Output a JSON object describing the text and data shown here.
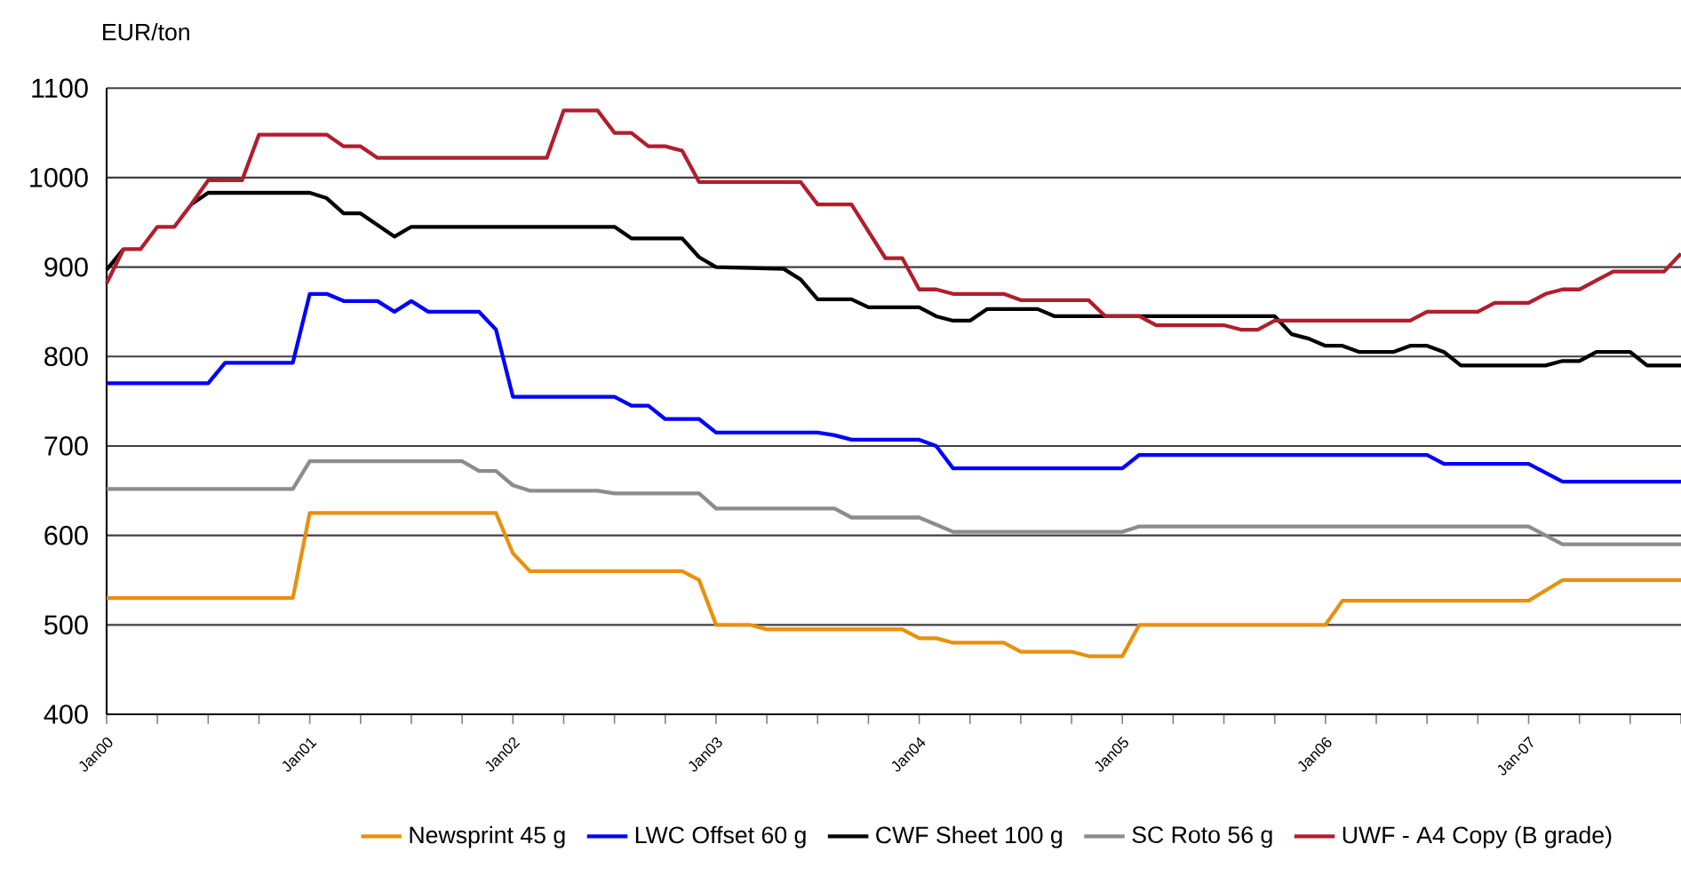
{
  "chart_data": {
    "type": "line",
    "ylabel": "EUR/ton",
    "xlim": [
      "2000-01",
      "2007-10"
    ],
    "ylim": [
      400,
      1100
    ],
    "yticks": [
      400,
      500,
      600,
      700,
      800,
      900,
      1000,
      1100
    ],
    "xticks": [
      {
        "value": "2000-01",
        "label": "Jan00"
      },
      {
        "value": "2000-04",
        "label": null
      },
      {
        "value": "2000-07",
        "label": null
      },
      {
        "value": "2000-10",
        "label": null
      },
      {
        "value": "2001-01",
        "label": "Jan01"
      },
      {
        "value": "2001-04",
        "label": null
      },
      {
        "value": "2001-07",
        "label": null
      },
      {
        "value": "2001-10",
        "label": null
      },
      {
        "value": "2002-01",
        "label": "Jan02"
      },
      {
        "value": "2002-04",
        "label": null
      },
      {
        "value": "2002-07",
        "label": null
      },
      {
        "value": "2002-10",
        "label": null
      },
      {
        "value": "2003-01",
        "label": "Jan03"
      },
      {
        "value": "2003-04",
        "label": null
      },
      {
        "value": "2003-07",
        "label": null
      },
      {
        "value": "2003-10",
        "label": null
      },
      {
        "value": "2004-01",
        "label": "Jan04"
      },
      {
        "value": "2004-04",
        "label": null
      },
      {
        "value": "2004-07",
        "label": null
      },
      {
        "value": "2004-10",
        "label": null
      },
      {
        "value": "2005-01",
        "label": "Jan05"
      },
      {
        "value": "2005-04",
        "label": null
      },
      {
        "value": "2005-07",
        "label": null
      },
      {
        "value": "2005-10",
        "label": null
      },
      {
        "value": "2006-01",
        "label": "Jan06"
      },
      {
        "value": "2006-04",
        "label": null
      },
      {
        "value": "2006-07",
        "label": null
      },
      {
        "value": "2006-10",
        "label": null
      },
      {
        "value": "2007-01",
        "label": "Jan-07"
      },
      {
        "value": "2007-04",
        "label": null
      },
      {
        "value": "2007-07",
        "label": null
      },
      {
        "value": "2007-10",
        "label": null
      }
    ],
    "grid": "y",
    "legend": "bottom",
    "marker": "none",
    "line_style": "solid",
    "series": [
      {
        "name": "Newsprint 45 g",
        "color": "#e8900c",
        "x": [
          "2000-01",
          "2000-12",
          "2001-01",
          "2001-12",
          "2002-01",
          "2002-02",
          "2002-11",
          "2002-12",
          "2003-01",
          "2003-03",
          "2003-04",
          "2003-12",
          "2004-01",
          "2004-02",
          "2004-03",
          "2004-06",
          "2004-07",
          "2004-10",
          "2004-11",
          "2005-01",
          "2005-02",
          "2006-01",
          "2006-02",
          "2007-01",
          "2007-03",
          "2007-10"
        ],
        "values": [
          530,
          530,
          625,
          625,
          580,
          560,
          560,
          550,
          500,
          500,
          495,
          495,
          485,
          485,
          480,
          480,
          470,
          470,
          465,
          465,
          500,
          500,
          527,
          527,
          550,
          550
        ]
      },
      {
        "name": "LWC Offset 60 g",
        "color": "#0000ff",
        "x": [
          "2000-01",
          "2000-07",
          "2000-08",
          "2000-12",
          "2001-01",
          "2001-02",
          "2001-03",
          "2001-05",
          "2001-06",
          "2001-07",
          "2001-08",
          "2001-11",
          "2001-12",
          "2002-01",
          "2002-07",
          "2002-08",
          "2002-09",
          "2002-10",
          "2002-12",
          "2003-01",
          "2003-07",
          "2003-08",
          "2003-09",
          "2004-01",
          "2004-02",
          "2004-03",
          "2005-01",
          "2005-02",
          "2006-07",
          "2006-08",
          "2007-01",
          "2007-03",
          "2007-10"
        ],
        "values": [
          770,
          770,
          793,
          793,
          870,
          870,
          862,
          862,
          850,
          862,
          850,
          850,
          830,
          755,
          755,
          745,
          745,
          730,
          730,
          715,
          715,
          712,
          707,
          707,
          700,
          675,
          675,
          690,
          690,
          680,
          680,
          660,
          660
        ]
      },
      {
        "name": "CWF Sheet 100 g",
        "color": "#000000",
        "x": [
          "2000-01",
          "2000-02",
          "2000-03",
          "2000-04",
          "2000-05",
          "2000-06",
          "2000-07",
          "2001-01",
          "2001-02",
          "2001-03",
          "2001-04",
          "2001-05",
          "2001-06",
          "2001-07",
          "2002-07",
          "2002-08",
          "2002-11",
          "2002-12",
          "2003-01",
          "2003-05",
          "2003-06",
          "2003-07",
          "2003-09",
          "2003-10",
          "2004-01",
          "2004-02",
          "2004-03",
          "2004-04",
          "2004-05",
          "2004-08",
          "2004-09",
          "2005-10",
          "2005-11",
          "2005-12",
          "2006-01",
          "2006-02",
          "2006-03",
          "2006-05",
          "2006-06",
          "2006-07",
          "2006-08",
          "2006-09",
          "2007-02",
          "2007-03",
          "2007-04",
          "2007-05",
          "2007-07",
          "2007-08",
          "2007-10"
        ],
        "values": [
          897,
          920,
          null,
          null,
          null,
          970,
          983,
          983,
          977,
          960,
          960,
          947,
          934,
          945,
          945,
          932,
          932,
          911,
          900,
          898,
          886,
          864,
          864,
          855,
          855,
          845,
          840,
          840,
          853,
          853,
          845,
          845,
          825,
          820,
          812,
          812,
          805,
          805,
          812,
          812,
          805,
          790,
          790,
          795,
          795,
          805,
          805,
          790,
          790
        ]
      },
      {
        "name": "SC Roto 56 g",
        "color": "#8c8c8c",
        "x": [
          "2000-01",
          "2000-12",
          "2001-01",
          "2001-10",
          "2001-11",
          "2001-12",
          "2002-01",
          "2002-02",
          "2002-06",
          "2002-07",
          "2002-12",
          "2003-01",
          "2003-08",
          "2003-09",
          "2004-01",
          "2004-02",
          "2004-03",
          "2005-01",
          "2005-02",
          "2007-01",
          "2007-03",
          "2007-10"
        ],
        "values": [
          652,
          652,
          683,
          683,
          672,
          672,
          656,
          650,
          650,
          647,
          647,
          630,
          630,
          620,
          620,
          612,
          604,
          604,
          610,
          610,
          590,
          590
        ]
      },
      {
        "name": "UWF - A4 Copy (B grade)",
        "color": "#b01e2e",
        "x": [
          "2000-01",
          "2000-02",
          "2000-03",
          "2000-04",
          "2000-05",
          "2000-06",
          "2000-07",
          "2000-09",
          "2000-10",
          "2001-02",
          "2001-03",
          "2001-04",
          "2001-05",
          "2002-03",
          "2002-04",
          "2002-06",
          "2002-07",
          "2002-08",
          "2002-09",
          "2002-10",
          "2002-11",
          "2002-12",
          "2003-06",
          "2003-07",
          "2003-09",
          "2003-10",
          "2003-11",
          "2003-12",
          "2004-01",
          "2004-02",
          "2004-03",
          "2004-06",
          "2004-07",
          "2004-11",
          "2004-12",
          "2005-02",
          "2005-03",
          "2005-07",
          "2005-08",
          "2005-09",
          "2005-10",
          "2006-06",
          "2006-07",
          "2006-10",
          "2006-11",
          "2007-01",
          "2007-02",
          "2007-03",
          "2007-04",
          "2007-05",
          "2007-06",
          "2007-09",
          "2007-10"
        ],
        "values": [
          882,
          920,
          920,
          945,
          945,
          970,
          997,
          997,
          1048,
          1048,
          1035,
          1035,
          1022,
          1022,
          1075,
          1075,
          1050,
          1050,
          1035,
          1035,
          1030,
          995,
          995,
          970,
          970,
          940,
          910,
          910,
          875,
          875,
          870,
          870,
          863,
          863,
          845,
          845,
          835,
          835,
          830,
          830,
          840,
          840,
          850,
          850,
          860,
          860,
          870,
          875,
          875,
          885,
          895,
          895,
          915
        ]
      }
    ]
  }
}
